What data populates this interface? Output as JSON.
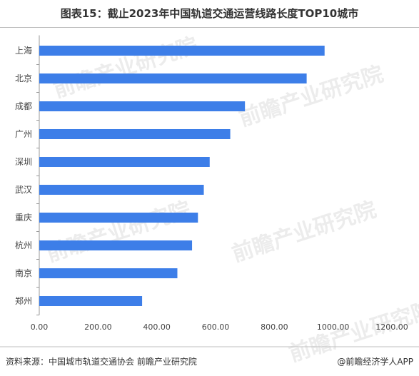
{
  "title": "图表15：截止2023年中国轨道交通运营线路长度TOP10城市",
  "footer": {
    "source": "资料来源：中国城市轨道交通协会 前瞻产业研究院",
    "brand": "@前瞻经济学人APP"
  },
  "watermark": "前瞻产业研究院",
  "colors": {
    "bar": "#3d7ee8"
  },
  "chart_data": {
    "type": "bar",
    "orientation": "horizontal",
    "title": "图表15：截止2023年中国轨道交通运营线路长度TOP10城市",
    "categories": [
      "上海",
      "北京",
      "成都",
      "广州",
      "深圳",
      "武汉",
      "重庆",
      "杭州",
      "南京",
      "郑州"
    ],
    "values": [
      971,
      910,
      700,
      650,
      580,
      560,
      540,
      520,
      470,
      350
    ],
    "xlim": [
      0,
      1200
    ],
    "xticks": [
      "0.00",
      "200.00",
      "400.00",
      "600.00",
      "800.00",
      "1000.00",
      "1200.00"
    ],
    "xlabel": "",
    "ylabel": "",
    "grid": false
  }
}
